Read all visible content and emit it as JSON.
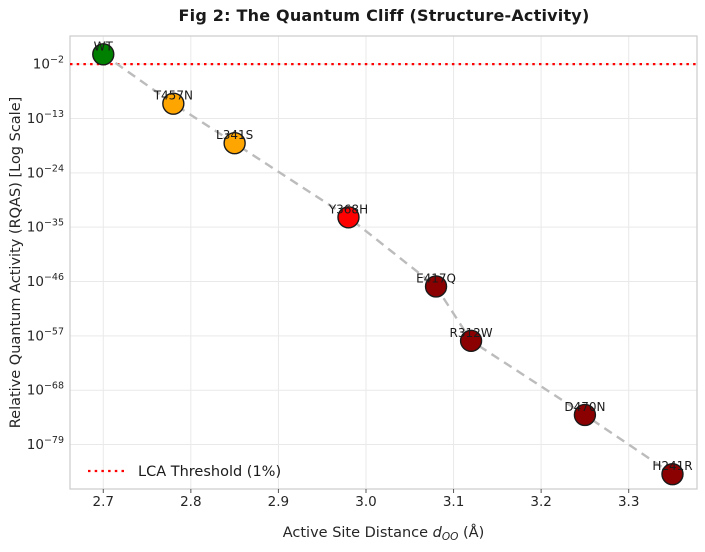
{
  "figure": {
    "title": "Fig 2: The Quantum Cliff (Structure-Activity)"
  },
  "chart_data": {
    "type": "scatter",
    "title": "Fig 2: The Quantum Cliff (Structure-Activity)",
    "xlabel": {
      "prefix": "Active Site Distance ",
      "variable": "d",
      "subscript": "OO",
      "suffix": " (Å)"
    },
    "ylabel": "Relative Quantum Activity (RQAS) [Log Scale]",
    "x_ticks": [
      "2.7",
      "2.8",
      "2.9",
      "3.0",
      "3.1",
      "3.2",
      "3.3"
    ],
    "x_tick_values": [
      2.7,
      2.8,
      2.9,
      3.0,
      3.1,
      3.2,
      3.3
    ],
    "y_tick_exponents": [
      -2,
      -13,
      -24,
      -35,
      -46,
      -57,
      -68,
      -79
    ],
    "xlim": [
      2.662,
      3.378
    ],
    "ylim_exponents": [
      -88,
      3.7
    ],
    "grid": true,
    "grid_color": "#e9e9e9",
    "border_color": "#cccccc",
    "threshold": {
      "label": "LCA Threshold (1%)",
      "value": 0.01,
      "value_exponent": -2,
      "color": "#ff0000",
      "style": "dotted"
    },
    "trend_line": {
      "style": "dashed",
      "color": "#bcbcbc"
    },
    "legend": {
      "position": "lower left",
      "entries": [
        {
          "label": "LCA Threshold (1%)",
          "swatch": "red-dotted-line"
        }
      ]
    },
    "points": [
      {
        "label": "WT",
        "x": 2.7,
        "rqas": 1.0,
        "exponent": 0,
        "color": "#008000"
      },
      {
        "label": "T457N",
        "x": 2.78,
        "rqas": 1e-10,
        "exponent": -10,
        "color": "#FFA500"
      },
      {
        "label": "L341S",
        "x": 2.85,
        "rqas": 1e-18,
        "exponent": -18,
        "color": "#FFA500"
      },
      {
        "label": "Y368H",
        "x": 2.98,
        "rqas": 1e-33,
        "exponent": -33,
        "color": "#FF0000"
      },
      {
        "label": "E417Q",
        "x": 3.08,
        "rqas": 1e-47,
        "exponent": -47,
        "color": "#8B0000"
      },
      {
        "label": "R312W",
        "x": 3.12,
        "rqas": 1e-58,
        "exponent": -58,
        "color": "#8B0000"
      },
      {
        "label": "D470N",
        "x": 3.25,
        "rqas": 1e-73,
        "exponent": -73,
        "color": "#8B0000"
      },
      {
        "label": "H241R",
        "x": 3.35,
        "rqas": 1e-85,
        "exponent": -85,
        "color": "#8B0000"
      }
    ],
    "marker": {
      "radius": 10.5,
      "edge_color": "#1a1a1a"
    },
    "text_color": "#262626"
  }
}
